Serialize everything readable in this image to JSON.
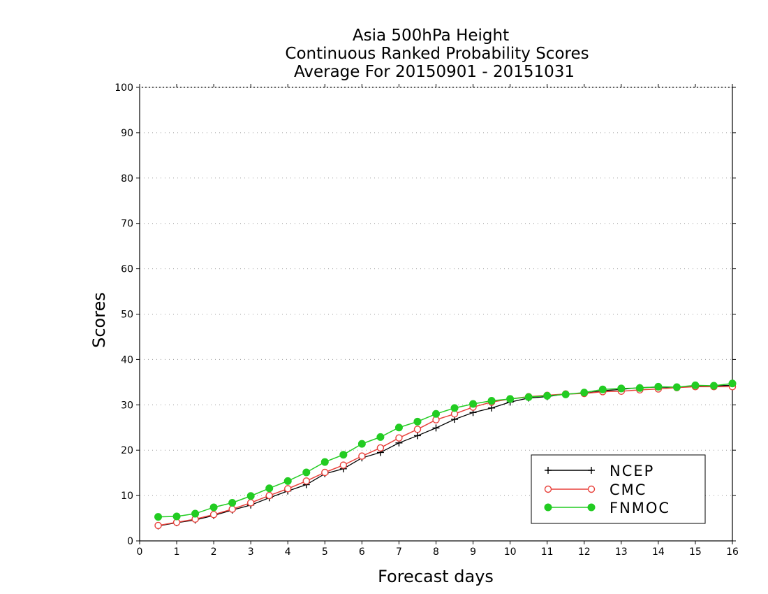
{
  "chart_data": {
    "type": "line",
    "title": [
      "Asia 500hPa Height",
      "Continuous Ranked Probability Scores",
      "Average For 20150901 - 20151031"
    ],
    "xlabel": "Forecast days",
    "ylabel": "Scores",
    "xlim": [
      0,
      16
    ],
    "ylim": [
      0,
      100
    ],
    "xticks": [
      "0",
      "1",
      "2",
      "3",
      "4",
      "5",
      "6",
      "7",
      "8",
      "9",
      "10",
      "11",
      "12",
      "13",
      "14",
      "15",
      "16"
    ],
    "yticks": [
      "0",
      "10",
      "20",
      "30",
      "40",
      "50",
      "60",
      "70",
      "80",
      "90",
      "100"
    ],
    "grid": "horizontal-dotted",
    "legend_position": "bottom-right",
    "x": [
      0.5,
      1,
      1.5,
      2,
      2.5,
      3,
      3.5,
      4,
      4.5,
      5,
      5.5,
      6,
      6.5,
      7,
      7.5,
      8,
      8.5,
      9,
      9.5,
      10,
      10.5,
      11,
      11.5,
      12,
      12.5,
      13,
      13.5,
      14,
      14.5,
      15,
      15.5,
      16
    ],
    "series": [
      {
        "name": "NCEP",
        "color": "#000000",
        "marker": "plus",
        "values": [
          3.3,
          4.0,
          4.6,
          5.6,
          6.8,
          7.9,
          9.5,
          11.0,
          12.4,
          14.8,
          15.9,
          18.3,
          19.5,
          21.6,
          23.2,
          24.9,
          26.8,
          28.3,
          29.3,
          30.6,
          31.5,
          31.8,
          32.4,
          32.5,
          33.1,
          33.4,
          33.8,
          33.9,
          33.8,
          34.1,
          34.2,
          34.3
        ]
      },
      {
        "name": "CMC",
        "color": "#e8413b",
        "marker": "open-circle",
        "values": [
          3.4,
          4.1,
          4.8,
          5.8,
          7.0,
          8.4,
          10.0,
          11.5,
          13.2,
          15.1,
          16.7,
          18.7,
          20.5,
          22.7,
          24.6,
          26.7,
          28.0,
          29.5,
          30.6,
          31.3,
          31.8,
          32.1,
          32.4,
          32.5,
          32.9,
          33.0,
          33.3,
          33.5,
          33.8,
          34.0,
          34.0,
          34.0
        ]
      },
      {
        "name": "FNMOC",
        "color": "#22cc22",
        "marker": "filled-circle",
        "values": [
          5.3,
          5.4,
          6.0,
          7.4,
          8.4,
          9.9,
          11.6,
          13.2,
          15.1,
          17.4,
          19.0,
          21.4,
          22.9,
          25.0,
          26.3,
          28.0,
          29.3,
          30.2,
          30.9,
          31.3,
          31.7,
          32.0,
          32.3,
          32.7,
          33.4,
          33.6,
          33.7,
          34.0,
          33.9,
          34.3,
          34.2,
          34.7
        ]
      }
    ]
  }
}
